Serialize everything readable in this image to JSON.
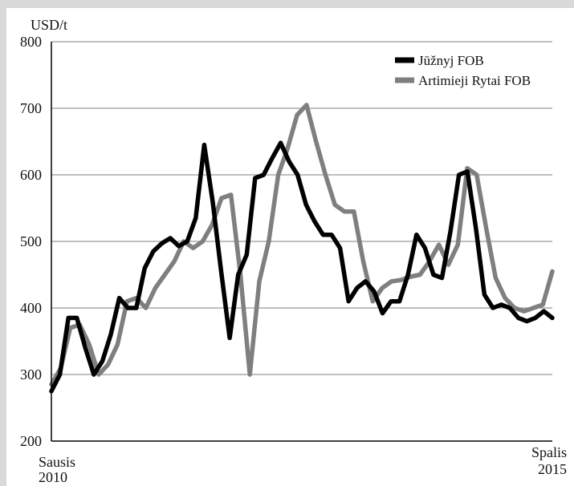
{
  "chart_data": {
    "type": "line",
    "ylabel": "USD/t",
    "ylim": [
      200,
      800
    ],
    "yticks": [
      200,
      300,
      400,
      500,
      600,
      700,
      800
    ],
    "grid": true,
    "legend": "top-right",
    "x_start_label": [
      "Sausis",
      "2010"
    ],
    "x_end_label": [
      "Spalis",
      "2015"
    ],
    "x_range": [
      "2010-01",
      "2015-10"
    ],
    "series": [
      {
        "name": "Jūžnyj FOB",
        "color": "#000000",
        "x": [
          0,
          1,
          2,
          3,
          4,
          5,
          6,
          7,
          8,
          9,
          10,
          11,
          12,
          13,
          14,
          15,
          16,
          17,
          18,
          19,
          20,
          21,
          22,
          23,
          24,
          25,
          26,
          27,
          28,
          29,
          30,
          31,
          32,
          33,
          34,
          35,
          36,
          37,
          38,
          39,
          40,
          41,
          42,
          43,
          44,
          45,
          46,
          47,
          48,
          49,
          50,
          51,
          52,
          53,
          54,
          55,
          56,
          57,
          58,
          59,
          60,
          61,
          62,
          63,
          64,
          65,
          66,
          67,
          68,
          69
        ],
        "values": [
          275,
          300,
          385,
          385,
          340,
          300,
          320,
          360,
          415,
          400,
          400,
          460,
          485,
          497,
          505,
          493,
          500,
          535,
          645,
          560,
          455,
          355,
          450,
          480,
          595,
          600,
          625,
          648,
          620,
          600,
          555,
          530,
          510,
          510,
          490,
          410,
          430,
          440,
          425,
          392,
          410,
          410,
          450,
          510,
          490,
          450,
          445,
          515,
          600,
          605,
          520,
          420,
          400,
          405,
          400,
          385,
          380,
          385,
          395,
          385,
          null,
          null,
          null,
          null,
          null,
          null,
          null,
          null,
          null,
          null
        ],
        "note": ""
      },
      {
        "name": "Artimieji Rytai FOB",
        "color": "#7f7f7f",
        "x": [
          0,
          1,
          2,
          3,
          4,
          5,
          6,
          7,
          8,
          9,
          10,
          11,
          12,
          13,
          14,
          15,
          16,
          17,
          18,
          19,
          20,
          21,
          22,
          23,
          24,
          25,
          26,
          27,
          28,
          29,
          30,
          31,
          32,
          33,
          34,
          35,
          36,
          37,
          38,
          39,
          40,
          41,
          42,
          43,
          44,
          45,
          46,
          47,
          48,
          49,
          50,
          51,
          52,
          53,
          54,
          55,
          56,
          57,
          58,
          59,
          60,
          61,
          62,
          63,
          64,
          65,
          66,
          67,
          68,
          69
        ],
        "values": [
          285,
          310,
          370,
          375,
          345,
          300,
          315,
          345,
          410,
          415,
          400,
          430,
          450,
          470,
          500,
          490,
          500,
          525,
          565,
          570,
          450,
          300,
          440,
          500,
          600,
          640,
          690,
          705,
          650,
          600,
          555,
          545,
          545,
          470,
          410,
          430,
          440,
          442,
          447,
          450,
          470,
          495,
          465,
          495,
          610,
          600,
          520,
          445,
          415,
          400,
          395,
          400,
          405,
          455,
          null,
          null,
          null,
          null,
          null,
          null,
          null,
          null,
          null,
          null,
          null,
          null,
          null,
          null,
          null,
          null
        ],
        "note": ""
      }
    ]
  }
}
